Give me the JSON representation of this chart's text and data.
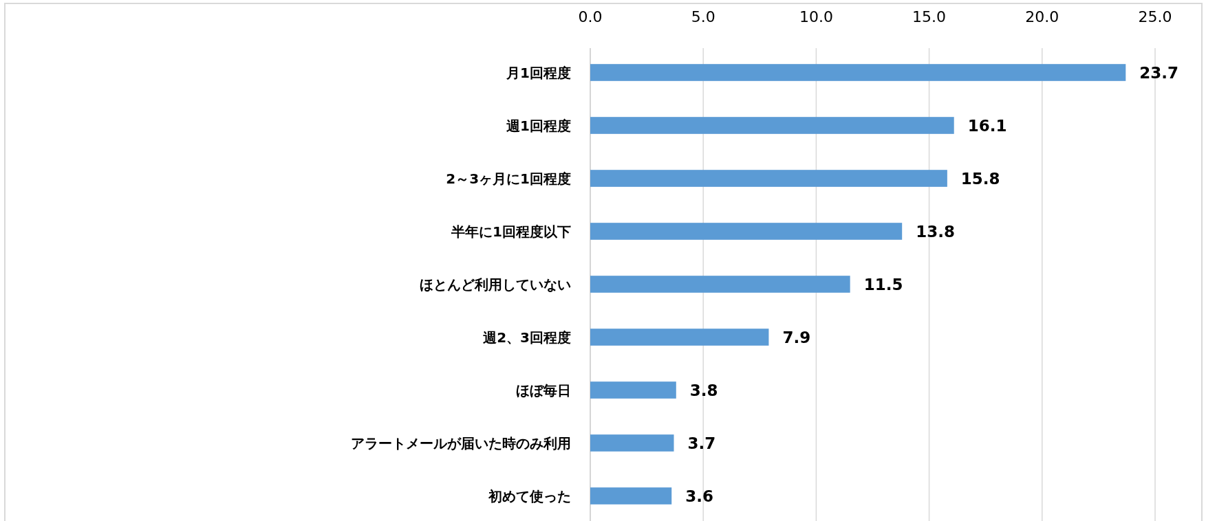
{
  "chart_data": {
    "type": "bar",
    "orientation": "horizontal",
    "categories": [
      "月1回程度",
      "週1回程度",
      "2～3ヶ月に1回程度",
      "半年に1回程度以下",
      "ほとんど利用していない",
      "週2、3回程度",
      "ほぼ毎日",
      "アラートメールが届いた時のみ利用",
      "初めて使った"
    ],
    "values": [
      23.7,
      16.1,
      15.8,
      13.8,
      11.5,
      7.9,
      3.8,
      3.7,
      3.6
    ],
    "color": "#5b9bd5",
    "xlim": [
      0,
      25
    ],
    "xticks": [
      {
        "value": 0,
        "label": "0.0"
      },
      {
        "value": 5,
        "label": "5.0"
      },
      {
        "value": 10,
        "label": "10.0"
      },
      {
        "value": 15,
        "label": "15.0"
      },
      {
        "value": 20,
        "label": "20.0"
      },
      {
        "value": 25,
        "label": "25.0"
      }
    ],
    "grid": "x",
    "data_labels": true
  }
}
